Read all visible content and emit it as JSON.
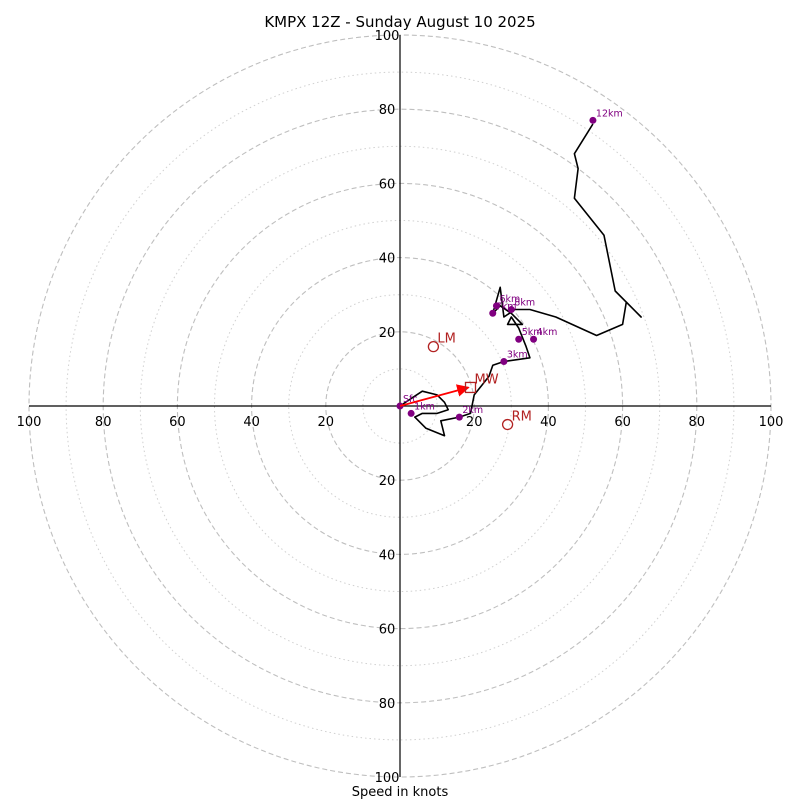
{
  "chart_data": {
    "type": "hodograph",
    "title": "KMPX 12Z - Sunday August 10 2025",
    "xlabel": "Speed in knots",
    "range": 100,
    "rings_major": [
      20,
      40,
      60,
      80,
      100
    ],
    "rings_minor": [
      10,
      30,
      50,
      70,
      90
    ],
    "tick_labels": [
      "20",
      "40",
      "60",
      "80",
      "100"
    ],
    "trace": [
      [
        0,
        0
      ],
      [
        3,
        2
      ],
      [
        6,
        4
      ],
      [
        10,
        3
      ],
      [
        12,
        1
      ],
      [
        13,
        -1
      ],
      [
        10,
        -2
      ],
      [
        6,
        -2
      ],
      [
        4,
        -3
      ],
      [
        7,
        -6
      ],
      [
        12,
        -8
      ],
      [
        11,
        -4
      ],
      [
        16,
        -3
      ],
      [
        19,
        -2
      ],
      [
        20,
        3
      ],
      [
        24,
        8
      ],
      [
        25,
        11
      ],
      [
        28,
        12
      ],
      [
        35,
        13
      ],
      [
        34,
        16
      ],
      [
        32,
        21
      ],
      [
        30,
        24
      ],
      [
        29,
        22
      ],
      [
        33,
        22
      ],
      [
        30,
        25
      ],
      [
        27,
        27
      ],
      [
        25,
        25
      ],
      [
        27,
        32
      ],
      [
        28,
        24
      ],
      [
        31,
        26
      ],
      [
        35,
        26
      ],
      [
        42,
        24
      ],
      [
        53,
        19
      ],
      [
        60,
        22
      ],
      [
        61,
        28
      ],
      [
        65,
        24
      ],
      [
        58,
        31
      ],
      [
        55,
        46
      ],
      [
        47,
        56
      ],
      [
        48,
        64
      ],
      [
        47,
        68
      ],
      [
        52,
        76
      ]
    ],
    "height_markers": [
      {
        "label": "Sfc",
        "x": 0,
        "y": 0
      },
      {
        "label": "1km",
        "x": 3,
        "y": -2
      },
      {
        "label": "2km",
        "x": 16,
        "y": -3
      },
      {
        "label": "3km",
        "x": 28,
        "y": 12
      },
      {
        "label": "4km",
        "x": 36,
        "y": 18
      },
      {
        "label": "5km",
        "x": 32,
        "y": 18
      },
      {
        "label": "6km",
        "x": 26,
        "y": 27
      },
      {
        "label": "7km",
        "x": 25,
        "y": 25
      },
      {
        "label": "8km",
        "x": 30,
        "y": 26
      },
      {
        "label": "12km",
        "x": 52,
        "y": 77
      }
    ],
    "storm_motion": {
      "mean_wind": {
        "label": "MW",
        "x": 19,
        "y": 5
      },
      "left_mover": {
        "label": "LM",
        "x": 9,
        "y": 16
      },
      "right_mover": {
        "label": "RM",
        "x": 29,
        "y": -5
      }
    },
    "colors": {
      "trace": "#000000",
      "marker": "#800080",
      "storm": "#b22222",
      "arrow": "#ff0000",
      "ring": "#bfbfbf"
    }
  }
}
